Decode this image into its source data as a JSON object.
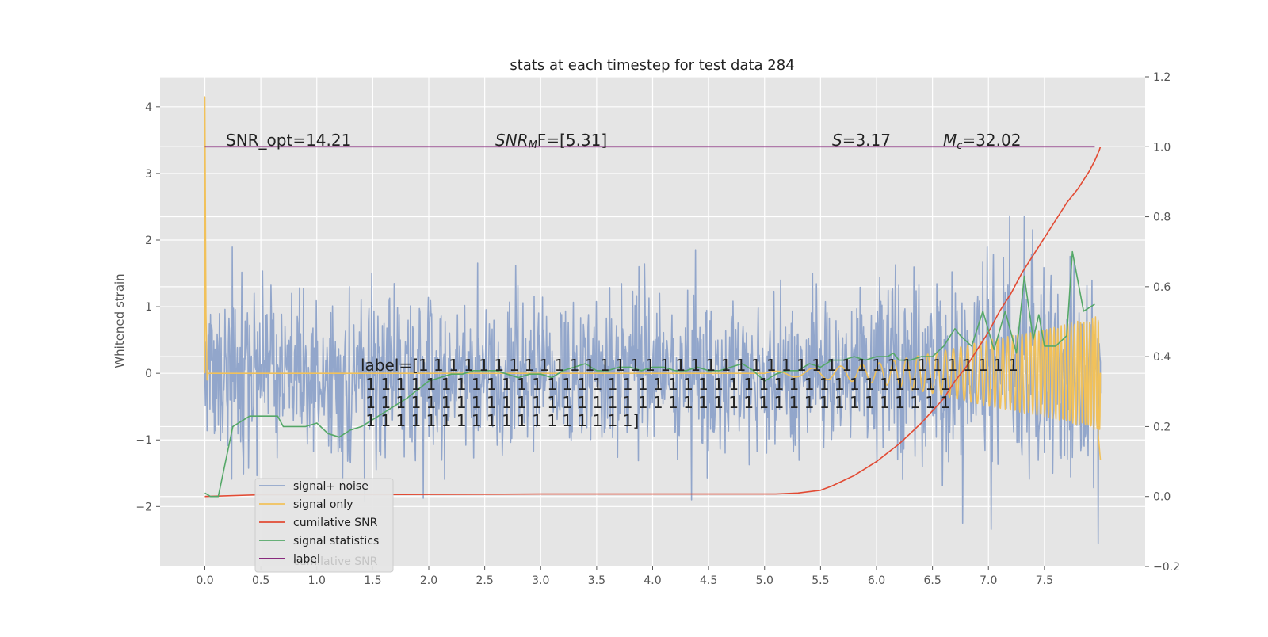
{
  "chart_data": {
    "type": "line",
    "title": "stats at each timestep for test data 284",
    "ylabel": "Whitened strain",
    "xlim": [
      -0.4,
      8.4
    ],
    "ylim_left": [
      -2.9,
      4.45
    ],
    "ylim_right": [
      -0.2,
      1.2
    ],
    "grid": true,
    "legend_position": "lower-left",
    "x_ticks": [
      "0.0",
      "0.5",
      "1.0",
      "1.5",
      "2.0",
      "2.5",
      "3.0",
      "3.5",
      "4.0",
      "4.5",
      "5.0",
      "5.5",
      "6.0",
      "6.5",
      "7.0",
      "7.5"
    ],
    "x_tick_values": [
      0,
      0.5,
      1,
      1.5,
      2,
      2.5,
      3,
      3.5,
      4,
      4.5,
      5,
      5.5,
      6,
      6.5,
      7,
      7.5
    ],
    "y_ticks_left": [
      "−2",
      "−1",
      "0",
      "1",
      "2",
      "3",
      "4"
    ],
    "y_tick_values_left": [
      -2,
      -1,
      0,
      1,
      2,
      3,
      4
    ],
    "y_ticks_right": [
      "−0.2",
      "0.0",
      "0.2",
      "0.4",
      "0.6",
      "0.8",
      "1.0",
      "1.2"
    ],
    "y_tick_values_right": [
      -0.2,
      0,
      0.2,
      0.4,
      0.6,
      0.8,
      1.0,
      1.2
    ],
    "annotations": {
      "snr_opt": "SNR_opt=14.21",
      "snr_mf_name": "SNR",
      "snr_mf_sub": "M",
      "snr_mf_rest": "F=[5.31]",
      "s_name": "S",
      "s_value": "=3.17",
      "mc_name": "M",
      "mc_sub": "c",
      "mc_value": "=32.02",
      "label_lines": [
        "label=[1 1 1 1 1 1 1 1 1 1 1 1 1 1 1 1 1 1 1 1 1 1 1 1 1 1 1 1 1 1 1 1 1 1 1 1 1 1 1 1",
        " 1 1 1 1 1 1 1 1 1 1 1 1 1 1 1 1 1 1 1 1 1 1 1 1 1 1 1 1 1 1 1 1 1 1 1 1 1 1 1",
        " 1 1 1 1 1 1 1 1 1 1 1 1 1 1 1 1 1 1 1 1 1 1 1 1 1 1 1 1 1 1 1 1 1 1 1 1 1 1 1",
        " 1 1 1 1 1 1 1 1 1 1 1 1 1 1 1 1 1 1]"
      ]
    },
    "legend_hidden_text": "cumilative SNR",
    "series": [
      {
        "name": "signal+ noise",
        "axis": "left",
        "color": "#92a6cb",
        "style": "noise",
        "x_range": [
          0.0,
          8.0
        ],
        "n_points": 1600,
        "envelope": [
          [
            0.0,
            1.05
          ],
          [
            1.0,
            1.05
          ],
          [
            2.0,
            0.95
          ],
          [
            3.0,
            1.0
          ],
          [
            4.0,
            1.0
          ],
          [
            5.0,
            1.05
          ],
          [
            6.0,
            1.05
          ],
          [
            7.0,
            1.2
          ],
          [
            7.5,
            1.35
          ],
          [
            8.0,
            1.4
          ]
        ],
        "peaks": [
          [
            7.32,
            2.35
          ],
          [
            6.77,
            -2.25
          ],
          [
            4.35,
            -1.9
          ],
          [
            7.98,
            -2.55
          ]
        ]
      },
      {
        "name": "signal only",
        "axis": "left",
        "color": "#f1c15a",
        "style": "chirp",
        "start": [
          [
            0.0,
            0.0
          ],
          [
            0.0,
            4.15
          ],
          [
            0.01,
            0.9
          ],
          [
            0.02,
            -0.1
          ],
          [
            0.03,
            0.0
          ]
        ],
        "chirp_start": 5.0,
        "chirp_end": 8.0,
        "amplitude": [
          [
            5.0,
            0.02
          ],
          [
            6.0,
            0.15
          ],
          [
            6.5,
            0.3
          ],
          [
            7.0,
            0.5
          ],
          [
            7.5,
            0.65
          ],
          [
            7.95,
            0.85
          ]
        ],
        "end_spike": [
          [
            7.98,
            -0.9
          ],
          [
            8.0,
            -1.3
          ]
        ]
      },
      {
        "name": "cumilative SNR",
        "axis": "right",
        "color": "#e24a33",
        "x": [
          0.0,
          0.5,
          1.0,
          2.0,
          3.0,
          4.0,
          4.5,
          5.0,
          5.1,
          5.3,
          5.5,
          5.6,
          5.7,
          5.8,
          5.9,
          6.0,
          6.1,
          6.2,
          6.3,
          6.4,
          6.5,
          6.6,
          6.7,
          6.8,
          6.9,
          7.0,
          7.1,
          7.2,
          7.3,
          7.4,
          7.5,
          7.6,
          7.7,
          7.8,
          7.9,
          7.95,
          7.99,
          8.0
        ],
        "y": [
          0.0,
          0.005,
          0.005,
          0.006,
          0.007,
          0.007,
          0.007,
          0.007,
          0.007,
          0.01,
          0.018,
          0.03,
          0.045,
          0.06,
          0.08,
          0.1,
          0.125,
          0.15,
          0.18,
          0.21,
          0.245,
          0.28,
          0.33,
          0.37,
          0.42,
          0.47,
          0.53,
          0.58,
          0.64,
          0.69,
          0.74,
          0.79,
          0.84,
          0.88,
          0.93,
          0.96,
          0.99,
          1.0
        ]
      },
      {
        "name": "signal statistics",
        "axis": "right",
        "color": "#55a868",
        "x": [
          0.0,
          0.05,
          0.12,
          0.25,
          0.4,
          0.55,
          0.65,
          0.7,
          0.8,
          0.9,
          1.0,
          1.1,
          1.2,
          1.3,
          1.4,
          1.5,
          1.6,
          1.7,
          1.8,
          2.0,
          2.1,
          2.2,
          2.3,
          2.4,
          2.5,
          2.6,
          2.7,
          2.8,
          2.9,
          3.0,
          3.1,
          3.2,
          3.3,
          3.4,
          3.5,
          3.6,
          3.7,
          3.8,
          3.9,
          4.0,
          4.1,
          4.2,
          4.3,
          4.4,
          4.5,
          4.6,
          4.7,
          4.8,
          4.9,
          5.0,
          5.1,
          5.2,
          5.3,
          5.4,
          5.5,
          5.6,
          5.7,
          5.8,
          5.9,
          6.0,
          6.1,
          6.15,
          6.2,
          6.3,
          6.4,
          6.5,
          6.6,
          6.7,
          6.75,
          6.85,
          6.95,
          7.05,
          7.15,
          7.25,
          7.32,
          7.4,
          7.45,
          7.5,
          7.6,
          7.7,
          7.75,
          7.85,
          7.95
        ],
        "y": [
          0.01,
          0.0,
          0.0,
          0.2,
          0.23,
          0.23,
          0.23,
          0.2,
          0.2,
          0.2,
          0.21,
          0.18,
          0.17,
          0.19,
          0.2,
          0.22,
          0.24,
          0.26,
          0.28,
          0.33,
          0.34,
          0.35,
          0.35,
          0.36,
          0.36,
          0.36,
          0.35,
          0.34,
          0.35,
          0.35,
          0.34,
          0.36,
          0.37,
          0.38,
          0.36,
          0.36,
          0.37,
          0.37,
          0.36,
          0.37,
          0.37,
          0.36,
          0.36,
          0.37,
          0.36,
          0.36,
          0.37,
          0.38,
          0.36,
          0.33,
          0.35,
          0.36,
          0.36,
          0.38,
          0.37,
          0.39,
          0.39,
          0.4,
          0.39,
          0.4,
          0.4,
          0.41,
          0.39,
          0.39,
          0.4,
          0.4,
          0.43,
          0.48,
          0.46,
          0.43,
          0.53,
          0.42,
          0.53,
          0.41,
          0.63,
          0.45,
          0.52,
          0.43,
          0.43,
          0.46,
          0.7,
          0.53,
          0.55
        ]
      },
      {
        "name": "label",
        "axis": "right",
        "color": "#7a0f6e",
        "x": [
          0.0,
          7.95
        ],
        "y": [
          1.0,
          1.0
        ]
      }
    ]
  }
}
